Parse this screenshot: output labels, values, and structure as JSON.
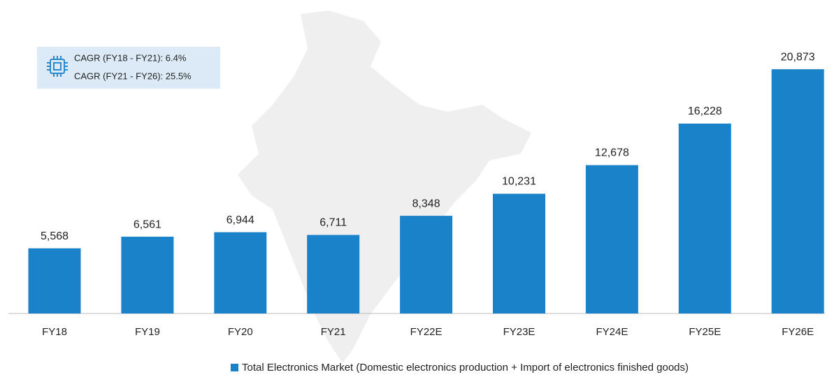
{
  "chart_data": {
    "type": "bar",
    "categories": [
      "FY18",
      "FY19",
      "FY20",
      "FY21",
      "FY22E",
      "FY23E",
      "FY24E",
      "FY25E",
      "FY26E"
    ],
    "series": [
      {
        "name": "Total Electronics Market (Domestic electronics production + Import of electronics finished goods)",
        "color": "#1a82c8",
        "values": [
          5568,
          6561,
          6944,
          6711,
          8348,
          10231,
          12678,
          16228,
          20873
        ],
        "value_labels": [
          "5,568",
          "6,561",
          "6,944",
          "6,711",
          "8,348",
          "10,231",
          "12,678",
          "16,228",
          "20,873"
        ]
      }
    ],
    "ylim": [
      0,
      25000
    ],
    "annotations": [
      "CAGR (FY18 - FY21): 6.4%",
      "CAGR (FY21 - FY26): 25.5%"
    ],
    "legend": "bottom"
  }
}
